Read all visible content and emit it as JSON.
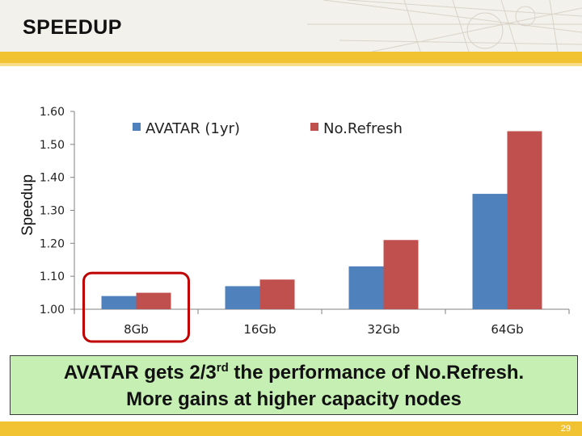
{
  "slide": {
    "title": "SPEEDUP",
    "callout_line1_a": "AVATAR gets 2/3",
    "callout_line1_sup": "rd",
    "callout_line1_b": " the performance of No.Refresh.",
    "callout_line2": "More gains at higher capacity nodes",
    "page_number": "29"
  },
  "colors": {
    "band": "#f1c232",
    "callout_bg": "#c6efb4",
    "highlight_box": "#c00000"
  },
  "chart_data": {
    "type": "bar",
    "ylabel": "Speedup",
    "ylim": [
      1.0,
      1.6
    ],
    "yticks": [
      "1.00",
      "1.10",
      "1.20",
      "1.30",
      "1.40",
      "1.50",
      "1.60"
    ],
    "categories": [
      "8Gb",
      "16Gb",
      "32Gb",
      "64Gb"
    ],
    "series": [
      {
        "name": "AVATAR (1yr)",
        "color": "#4f81bd",
        "values": [
          1.04,
          1.07,
          1.13,
          1.35
        ]
      },
      {
        "name": "No.Refresh",
        "color": "#c0504d",
        "values": [
          1.05,
          1.09,
          1.21,
          1.54
        ]
      }
    ],
    "legend": "top",
    "grid": false,
    "highlighted_category": "8Gb"
  }
}
